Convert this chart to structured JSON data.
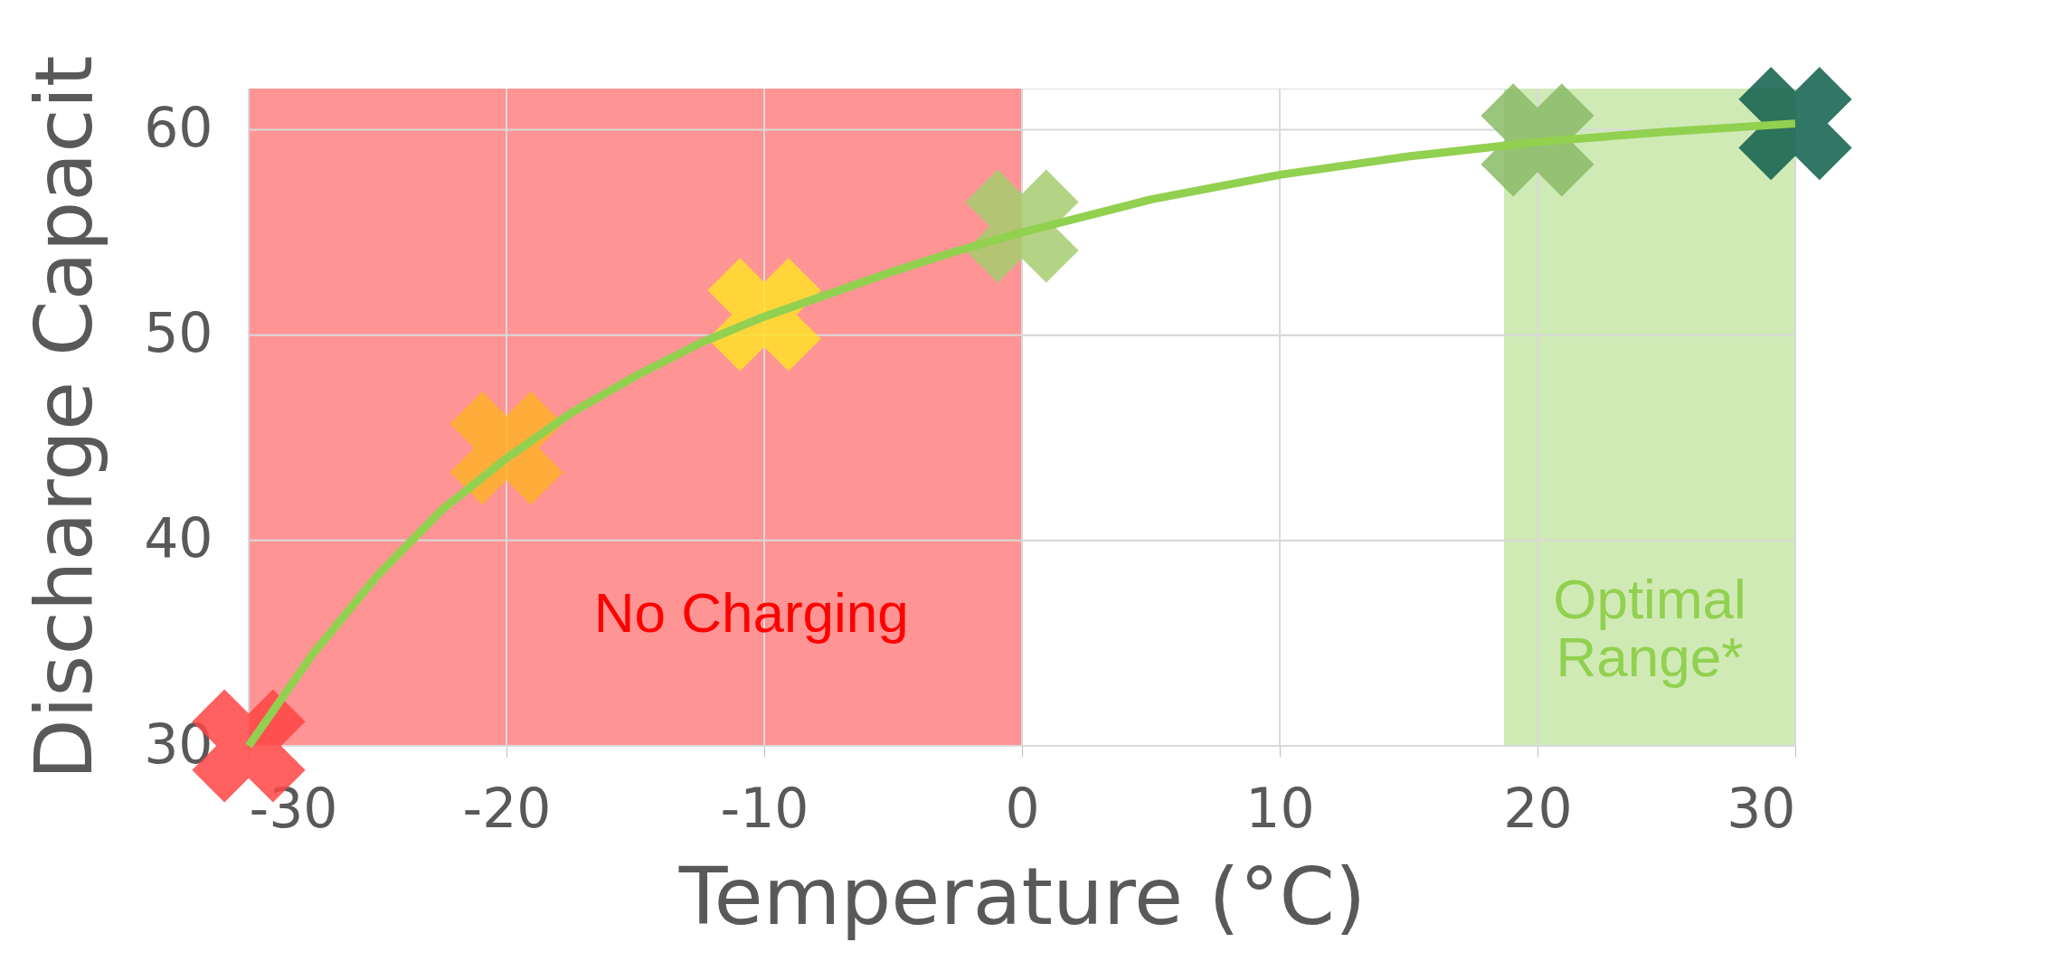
{
  "chart_data": {
    "type": "scatter",
    "xlabel": "Temperature (°C)",
    "ylabel": "Discharge Capacit",
    "xlim": [
      -30,
      30
    ],
    "ylim": [
      30,
      62
    ],
    "xticks": [
      -30,
      -20,
      -10,
      0,
      10,
      20,
      30
    ],
    "yticks": [
      30,
      40,
      50,
      60
    ],
    "grid": true,
    "series": [
      {
        "marker": "cross",
        "x": [
          -30,
          -20,
          -10,
          0,
          20,
          30
        ],
        "values": [
          30,
          44.5,
          51,
          55.3,
          59.5,
          60.3
        ],
        "colors": [
          "#ff4444",
          "#ffb12a",
          "#ffe02a",
          "#a6cc70",
          "#8aba66",
          "#0e5e4a"
        ]
      },
      {
        "type": "line",
        "color": "#92d050",
        "line_style": "solid",
        "x": [
          -30,
          -27.5,
          -25,
          -22.5,
          -20,
          -17.5,
          -15,
          -12.5,
          -10,
          -7.5,
          -5,
          -2.5,
          0,
          5,
          10,
          15,
          20,
          25,
          30
        ],
        "values": [
          30,
          34.5,
          38.3,
          41.5,
          44,
          46.2,
          48,
          49.6,
          50.9,
          52,
          53.1,
          54.1,
          55,
          56.6,
          57.8,
          58.7,
          59.4,
          59.9,
          60.3
        ]
      }
    ],
    "bands": [
      {
        "axis": "x",
        "from": -30,
        "to": 0,
        "label": "No Charging",
        "color": "#ff9494"
      },
      {
        "axis": "x",
        "from": 18.7,
        "to": 30,
        "label": "Optimal Range*",
        "color": "#d0eab6"
      }
    ]
  }
}
